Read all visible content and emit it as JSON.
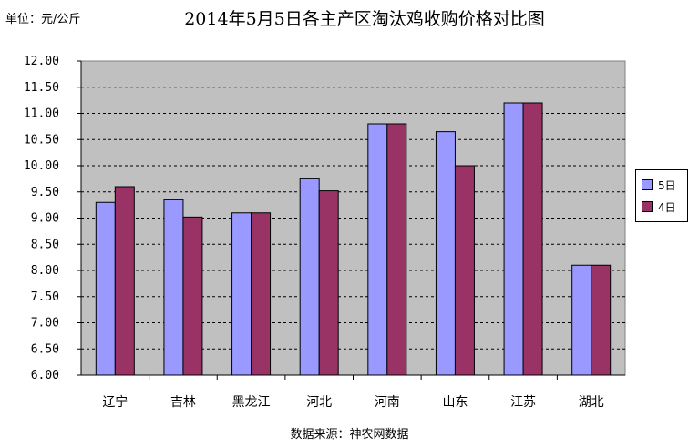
{
  "header": {
    "unit": "单位：元/公斤",
    "title": "2014年5月5日各主产区淘汰鸡收购价格对比图"
  },
  "footer": {
    "source": "数据来源：神农网数据"
  },
  "legend": {
    "items": [
      "5日",
      "4日"
    ]
  },
  "colors": {
    "series_5": "#9999ff",
    "series_4": "#993366",
    "plot_bg": "#c0c0c0"
  },
  "chart_data": {
    "type": "bar",
    "title": "2014年5月5日各主产区淘汰鸡收购价格对比图",
    "ylabel": "单位：元/公斤",
    "xlabel": "",
    "categories": [
      "辽宁",
      "吉林",
      "黑龙江",
      "河北",
      "河南",
      "山东",
      "江苏",
      "湖北"
    ],
    "series": [
      {
        "name": "5日",
        "values": [
          9.3,
          9.35,
          9.1,
          9.75,
          10.8,
          10.65,
          11.2,
          8.1
        ]
      },
      {
        "name": "4日",
        "values": [
          9.6,
          9.02,
          9.1,
          9.52,
          10.8,
          10.0,
          11.2,
          8.1
        ]
      }
    ],
    "ylim": [
      6.0,
      12.0
    ],
    "yticks": [
      "6.00",
      "6.50",
      "7.00",
      "7.50",
      "8.00",
      "8.50",
      "9.00",
      "9.50",
      "10.00",
      "10.50",
      "11.00",
      "11.50",
      "12.00"
    ],
    "grid": true,
    "legend_position": "right"
  }
}
